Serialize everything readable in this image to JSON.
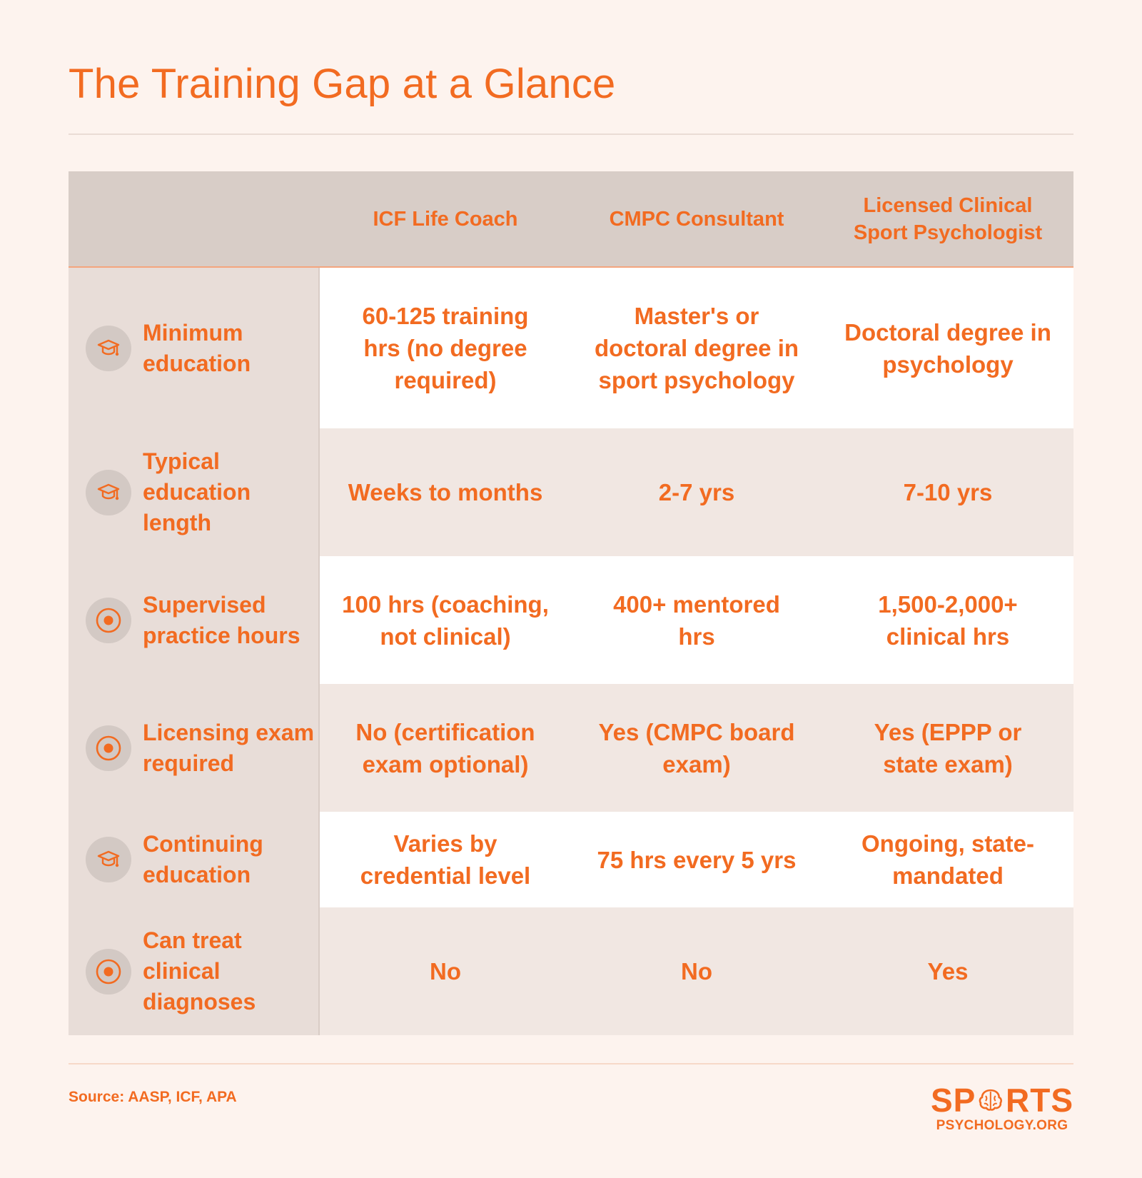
{
  "title": "The Training Gap at a Glance",
  "header": {
    "corner": "",
    "columns": [
      "ICF Life Coach",
      "CMPC Consultant",
      "Licensed Clinical Sport Psychologist"
    ]
  },
  "rows": [
    {
      "icon": "graduation-cap-icon",
      "label": "Minimum education",
      "values": [
        "60-125 training hrs (no degree required)",
        "Master's or doctoral degree in sport psychology",
        "Doctoral degree in psychology"
      ]
    },
    {
      "icon": "graduation-cap-icon",
      "label": "Typical education length",
      "values": [
        "Weeks to months",
        "2-7 yrs",
        "7-10 yrs"
      ]
    },
    {
      "icon": "target-icon",
      "label": "Supervised practice hours",
      "values": [
        "100 hrs (coaching, not clinical)",
        "400+ mentored hrs",
        "1,500-2,000+ clinical hrs"
      ]
    },
    {
      "icon": "target-icon",
      "label": "Licensing exam required",
      "values": [
        "No (certification exam optional)",
        "Yes (CMPC board exam)",
        "Yes (EPPP or state exam)"
      ]
    },
    {
      "icon": "graduation-cap-icon",
      "label": "Continuing education",
      "values": [
        "Varies by credential level",
        "75 hrs every 5 yrs",
        "Ongoing, state-mandated"
      ]
    },
    {
      "icon": "target-icon",
      "label": "Can treat clinical diagnoses",
      "values": [
        "No",
        "No",
        "Yes"
      ]
    }
  ],
  "source": "Source: AASP, ICF, APA",
  "logo": {
    "main_left": "SP",
    "main_right": "RTS",
    "sub": "PSYCHOLOGY.ORG",
    "glyph": "brain-icon"
  },
  "colors": {
    "accent": "#f26b21",
    "header_bg": "#d8cdc7",
    "label_bg": "#e8ddd8",
    "tinted_row": "#f1e7e2",
    "page_bg": "#fdf3ee"
  }
}
